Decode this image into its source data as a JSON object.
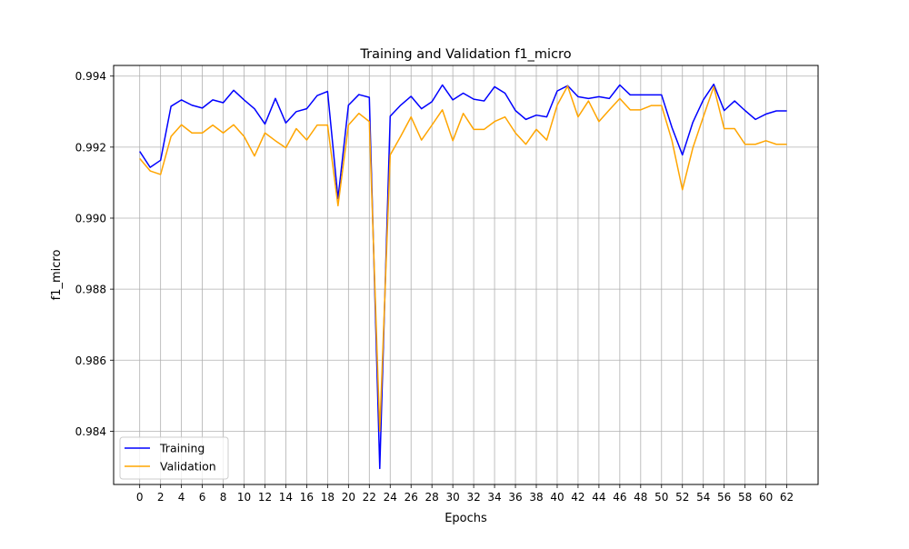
{
  "chart_data": {
    "type": "line",
    "title": "Training and Validation f1_micro",
    "xlabel": "Epochs",
    "ylabel": "f1_micro",
    "xlim": [
      -2.5,
      65
    ],
    "ylim": [
      0.9825,
      0.9943
    ],
    "xticks": [
      0,
      2,
      4,
      6,
      8,
      10,
      12,
      14,
      16,
      18,
      20,
      22,
      24,
      26,
      28,
      30,
      32,
      34,
      36,
      38,
      40,
      42,
      44,
      46,
      48,
      50,
      52,
      54,
      56,
      58,
      60,
      62
    ],
    "yticks": [
      0.984,
      0.986,
      0.988,
      0.99,
      0.992,
      0.994
    ],
    "ytick_labels": [
      "0.984",
      "0.986",
      "0.988",
      "0.990",
      "0.992",
      "0.994"
    ],
    "grid": true,
    "legend_position": "lower-left",
    "x": [
      0,
      1,
      2,
      3,
      4,
      5,
      6,
      7,
      8,
      9,
      10,
      11,
      12,
      13,
      14,
      15,
      16,
      17,
      18,
      19,
      20,
      21,
      22,
      23,
      24,
      25,
      26,
      27,
      28,
      29,
      30,
      31,
      32,
      33,
      34,
      35,
      36,
      37,
      38,
      39,
      40,
      41,
      42,
      43,
      44,
      45,
      46,
      47,
      48,
      49,
      50,
      51,
      52,
      53,
      54,
      55,
      56,
      57,
      58,
      59,
      60,
      61,
      62
    ],
    "series": [
      {
        "name": "Training",
        "color": "#0000ff",
        "values": [
          0.99188,
          0.99143,
          0.99163,
          0.99315,
          0.99333,
          0.99318,
          0.9931,
          0.99333,
          0.99325,
          0.9936,
          0.99333,
          0.99308,
          0.99265,
          0.99337,
          0.99268,
          0.993,
          0.99308,
          0.99345,
          0.99357,
          0.99055,
          0.99318,
          0.99348,
          0.9934,
          0.98295,
          0.99287,
          0.99318,
          0.99343,
          0.99308,
          0.99328,
          0.99375,
          0.99333,
          0.99352,
          0.99335,
          0.9933,
          0.9937,
          0.99352,
          0.99303,
          0.99278,
          0.9929,
          0.99285,
          0.99358,
          0.99373,
          0.99342,
          0.99337,
          0.99342,
          0.99337,
          0.99375,
          0.99347,
          0.99347,
          0.99347,
          0.99347,
          0.99255,
          0.99178,
          0.9927,
          0.99333,
          0.99377,
          0.99303,
          0.9933,
          0.99303,
          0.99278,
          0.99293,
          0.99302,
          0.99302
        ]
      },
      {
        "name": "Validation",
        "color": "#ffa500",
        "values": [
          0.99168,
          0.99133,
          0.99123,
          0.9923,
          0.99263,
          0.9924,
          0.9924,
          0.99262,
          0.9924,
          0.99263,
          0.9923,
          0.99175,
          0.9924,
          0.99218,
          0.99198,
          0.99252,
          0.9922,
          0.99262,
          0.99262,
          0.99035,
          0.99262,
          0.99295,
          0.99272,
          0.984,
          0.99178,
          0.9923,
          0.99285,
          0.9922,
          0.99262,
          0.99305,
          0.99218,
          0.99295,
          0.9925,
          0.9925,
          0.99272,
          0.99285,
          0.9924,
          0.99208,
          0.9925,
          0.9922,
          0.99318,
          0.99372,
          0.99285,
          0.9933,
          0.99272,
          0.99305,
          0.99337,
          0.99305,
          0.99305,
          0.99317,
          0.99317,
          0.99218,
          0.9908,
          0.99198,
          0.99285,
          0.9937,
          0.99252,
          0.99252,
          0.99208,
          0.99208,
          0.99218,
          0.99208,
          0.99208
        ]
      }
    ]
  }
}
